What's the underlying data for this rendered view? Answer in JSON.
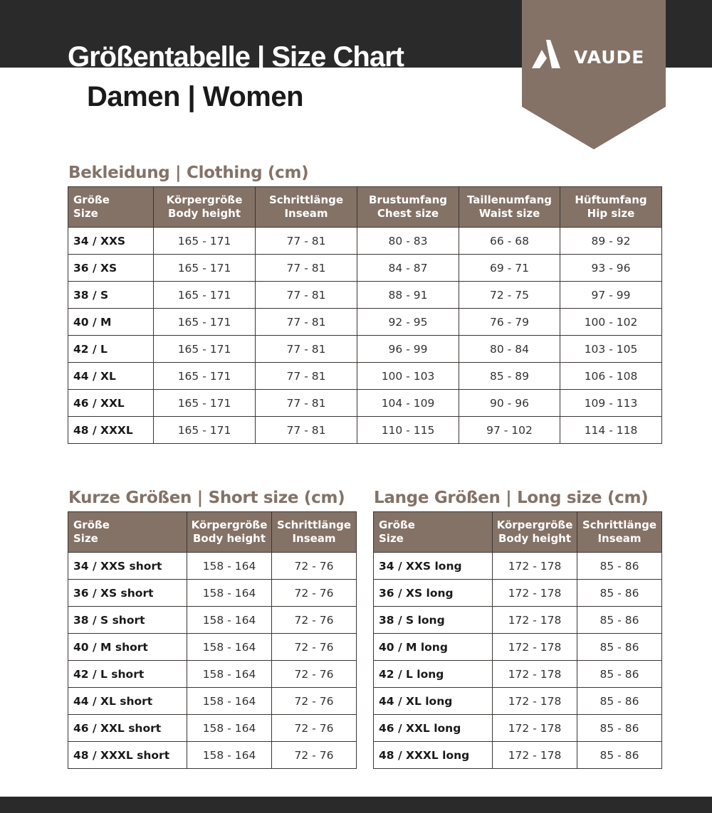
{
  "header": {
    "title": "Größentabelle | Size Chart",
    "subtitle": "Damen | Women",
    "logo": "VAUDE"
  },
  "colors": {
    "dark": "#2b2a2a",
    "brand": "#847266"
  },
  "clothing": {
    "title": "Bekleidung | Clothing (cm)",
    "headers": [
      [
        "Größe",
        "Size"
      ],
      [
        "Körpergröße",
        "Body height"
      ],
      [
        "Schrittlänge",
        "Inseam"
      ],
      [
        "Brustumfang",
        "Chest size"
      ],
      [
        "Taillenumfang",
        "Waist size"
      ],
      [
        "Hüftumfang",
        "Hip size"
      ]
    ],
    "rows": [
      [
        "34 / XXS",
        "165 - 171",
        "77 - 81",
        "80 - 83",
        "66 - 68",
        "89 - 92"
      ],
      [
        "36 / XS",
        "165 - 171",
        "77 - 81",
        "84 - 87",
        "69 - 71",
        "93 - 96"
      ],
      [
        "38 / S",
        "165 - 171",
        "77 - 81",
        "88 - 91",
        "72 - 75",
        "97 - 99"
      ],
      [
        "40 / M",
        "165 - 171",
        "77 - 81",
        "92 - 95",
        "76 - 79",
        "100 - 102"
      ],
      [
        "42 / L",
        "165 - 171",
        "77 - 81",
        "96 - 99",
        "80 - 84",
        "103 - 105"
      ],
      [
        "44 / XL",
        "165 - 171",
        "77 - 81",
        "100 - 103",
        "85 - 89",
        "106 - 108"
      ],
      [
        "46 / XXL",
        "165 - 171",
        "77 - 81",
        "104 - 109",
        "90 - 96",
        "109 - 113"
      ],
      [
        "48 / XXXL",
        "165 - 171",
        "77 - 81",
        "110 - 115",
        "97 - 102",
        "114 - 118"
      ]
    ]
  },
  "short": {
    "title": "Kurze Größen | Short size (cm)",
    "headers": [
      [
        "Größe",
        "Size"
      ],
      [
        "Körpergröße",
        "Body height"
      ],
      [
        "Schrittlänge",
        "Inseam"
      ]
    ],
    "rows": [
      [
        "34 / XXS short",
        "158 - 164",
        "72 - 76"
      ],
      [
        "36 / XS short",
        "158 - 164",
        "72 - 76"
      ],
      [
        "38 / S short",
        "158 - 164",
        "72 - 76"
      ],
      [
        "40 / M short",
        "158 - 164",
        "72 - 76"
      ],
      [
        "42 / L short",
        "158 - 164",
        "72 - 76"
      ],
      [
        "44 / XL short",
        "158 - 164",
        "72 - 76"
      ],
      [
        "46 / XXL short",
        "158 - 164",
        "72 - 76"
      ],
      [
        "48 / XXXL short",
        "158 - 164",
        "72 - 76"
      ]
    ]
  },
  "long": {
    "title": "Lange Größen | Long size (cm)",
    "headers": [
      [
        "Größe",
        "Size"
      ],
      [
        "Körpergröße",
        "Body height"
      ],
      [
        "Schrittlänge",
        "Inseam"
      ]
    ],
    "rows": [
      [
        "34 / XXS long",
        "172 - 178",
        "85 - 86"
      ],
      [
        "36 / XS long",
        "172 - 178",
        "85 - 86"
      ],
      [
        "38 / S long",
        "172 - 178",
        "85 - 86"
      ],
      [
        "40 / M long",
        "172 - 178",
        "85 - 86"
      ],
      [
        "42 / L long",
        "172 - 178",
        "85 - 86"
      ],
      [
        "44 / XL long",
        "172 - 178",
        "85 - 86"
      ],
      [
        "46 / XXL long",
        "172 - 178",
        "85 - 86"
      ],
      [
        "48 / XXXL long",
        "172 - 178",
        "85 - 86"
      ]
    ]
  }
}
